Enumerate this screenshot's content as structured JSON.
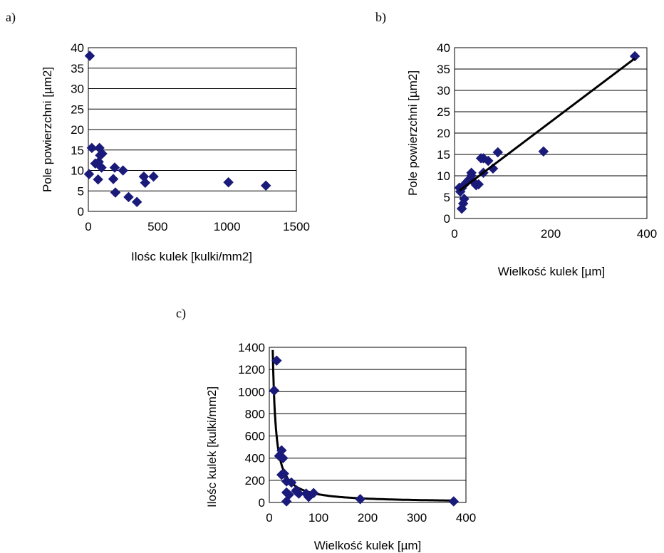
{
  "colors": {
    "marker": "#1a1a7a",
    "trend": "#000000",
    "grid": "#000000",
    "background": "#ffffff"
  },
  "chart_data": [
    {
      "panel": "a)",
      "type": "scatter",
      "marker": "diamond",
      "xlabel": "Ilośc kulek [kulki/mm2]",
      "ylabel": "Pole powierzchni [µm2]",
      "xlim": [
        0,
        1500
      ],
      "ylim": [
        0,
        40
      ],
      "xticks": [
        "0",
        "500",
        "1000",
        "1500"
      ],
      "yticks": [
        "0",
        "5",
        "10",
        "15",
        "20",
        "25",
        "30",
        "35",
        "40"
      ],
      "grid": "horizontal",
      "points": [
        [
          10,
          38
        ],
        [
          5,
          9.1
        ],
        [
          25,
          15.5
        ],
        [
          50,
          11.7
        ],
        [
          75,
          12.1
        ],
        [
          80,
          15.5
        ],
        [
          85,
          13.7
        ],
        [
          70,
          7.8
        ],
        [
          95,
          10.7
        ],
        [
          100,
          14.1
        ],
        [
          180,
          7.9
        ],
        [
          190,
          10.7
        ],
        [
          250,
          10
        ],
        [
          195,
          4.6
        ],
        [
          290,
          3.5
        ],
        [
          350,
          2.3
        ],
        [
          400,
          8.5
        ],
        [
          410,
          7
        ],
        [
          470,
          8.5
        ],
        [
          1010,
          7.1
        ],
        [
          1280,
          6.3
        ]
      ]
    },
    {
      "panel": "b)",
      "type": "scatter",
      "marker": "diamond",
      "trendline": "linear",
      "trend_points": [
        [
          10,
          6.5
        ],
        [
          375,
          37.5
        ]
      ],
      "xlabel": "Wielkość kulek [µm]",
      "ylabel": "Pole powierzchni [µm2]",
      "xlim": [
        0,
        400
      ],
      "ylim": [
        0,
        40
      ],
      "xticks": [
        "0",
        "200",
        "400"
      ],
      "yticks": [
        "0",
        "5",
        "10",
        "15",
        "20",
        "25",
        "30",
        "35",
        "40"
      ],
      "grid": "horizontal",
      "points": [
        [
          375,
          38
        ],
        [
          185,
          15.7
        ],
        [
          90,
          15.5
        ],
        [
          80,
          11.7
        ],
        [
          70,
          13.5
        ],
        [
          60,
          14.1
        ],
        [
          55,
          14.1
        ],
        [
          60,
          10.7
        ],
        [
          50,
          8
        ],
        [
          45,
          7.8
        ],
        [
          40,
          8.5
        ],
        [
          35,
          10
        ],
        [
          35,
          10.7
        ],
        [
          30,
          9.1
        ],
        [
          25,
          8.5
        ],
        [
          20,
          7.9
        ],
        [
          15,
          7.1
        ],
        [
          10,
          7.2
        ],
        [
          12,
          6.3
        ],
        [
          20,
          4.6
        ],
        [
          18,
          3.5
        ],
        [
          15,
          2.3
        ]
      ]
    },
    {
      "panel": "c)",
      "type": "scatter",
      "marker": "diamond",
      "trendline": "power",
      "trend_model": {
        "a": 11700,
        "b": -1.1,
        "xfrom": 7,
        "xto": 375
      },
      "xlabel": "Wielkość kulek [µm]",
      "ylabel": "Ilośc kulek [kulki/mm2]",
      "xlim": [
        0,
        400
      ],
      "ylim": [
        0,
        1400
      ],
      "xticks": [
        "0",
        "100",
        "200",
        "300",
        "400"
      ],
      "yticks": [
        "0",
        "200",
        "400",
        "600",
        "800",
        "1000",
        "1200",
        "1400"
      ],
      "grid": "horizontal",
      "points": [
        [
          15,
          1280
        ],
        [
          10,
          1010
        ],
        [
          20,
          420
        ],
        [
          25,
          470
        ],
        [
          28,
          400
        ],
        [
          30,
          260
        ],
        [
          25,
          250
        ],
        [
          35,
          190
        ],
        [
          45,
          180
        ],
        [
          35,
          90
        ],
        [
          40,
          70
        ],
        [
          55,
          100
        ],
        [
          60,
          80
        ],
        [
          75,
          80
        ],
        [
          80,
          50
        ],
        [
          90,
          85
        ],
        [
          185,
          30
        ],
        [
          375,
          10
        ],
        [
          35,
          10
        ],
        [
          55,
          110
        ]
      ]
    }
  ]
}
